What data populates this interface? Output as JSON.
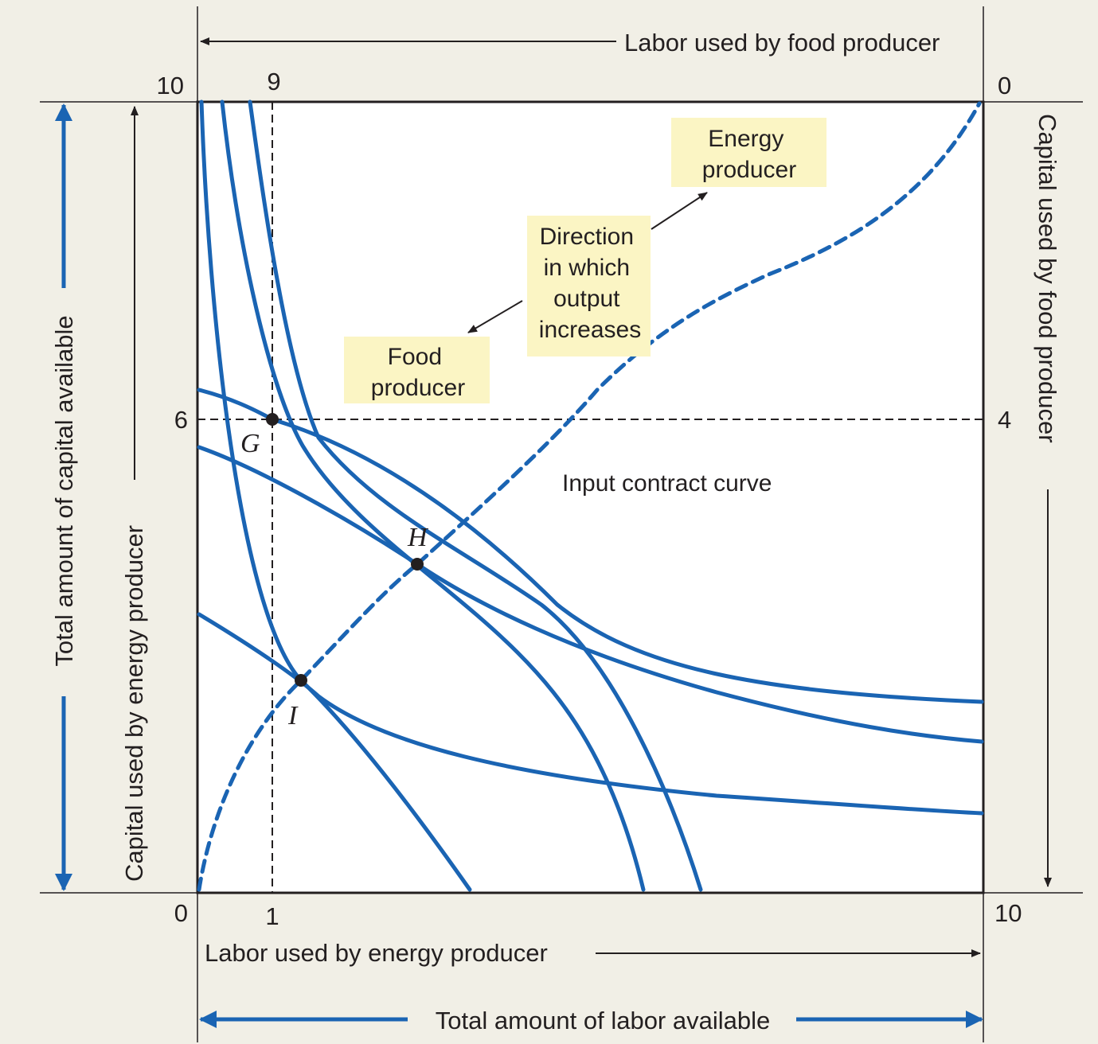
{
  "labels": {
    "top_axis": "Labor used by food producer",
    "bottom_axis": "Labor used by energy producer",
    "total_labor": "Total amount of labor available",
    "left_axis": "Capital used by energy producer",
    "total_capital": "Total amount of capital available",
    "right_axis": "Capital used by food producer",
    "contract_curve": "Input contract curve",
    "energy_producer": [
      "Energy",
      "producer"
    ],
    "direction": [
      "Direction",
      "in which",
      "output",
      "increases"
    ],
    "food_producer": [
      "Food",
      "producer"
    ]
  },
  "ticks": {
    "top_left": "10",
    "top_9": "9",
    "top_right": "0",
    "left_6": "6",
    "bottom_left": "0",
    "bottom_1": "1",
    "bottom_right": "10",
    "right_4": "4"
  },
  "points": [
    "G",
    "H",
    "I"
  ],
  "colors": {
    "curve_blue": "#1a64b3",
    "label_bg": "#fbf5c4",
    "background": "#f1efe6",
    "plot_bg": "#ffffff"
  }
}
